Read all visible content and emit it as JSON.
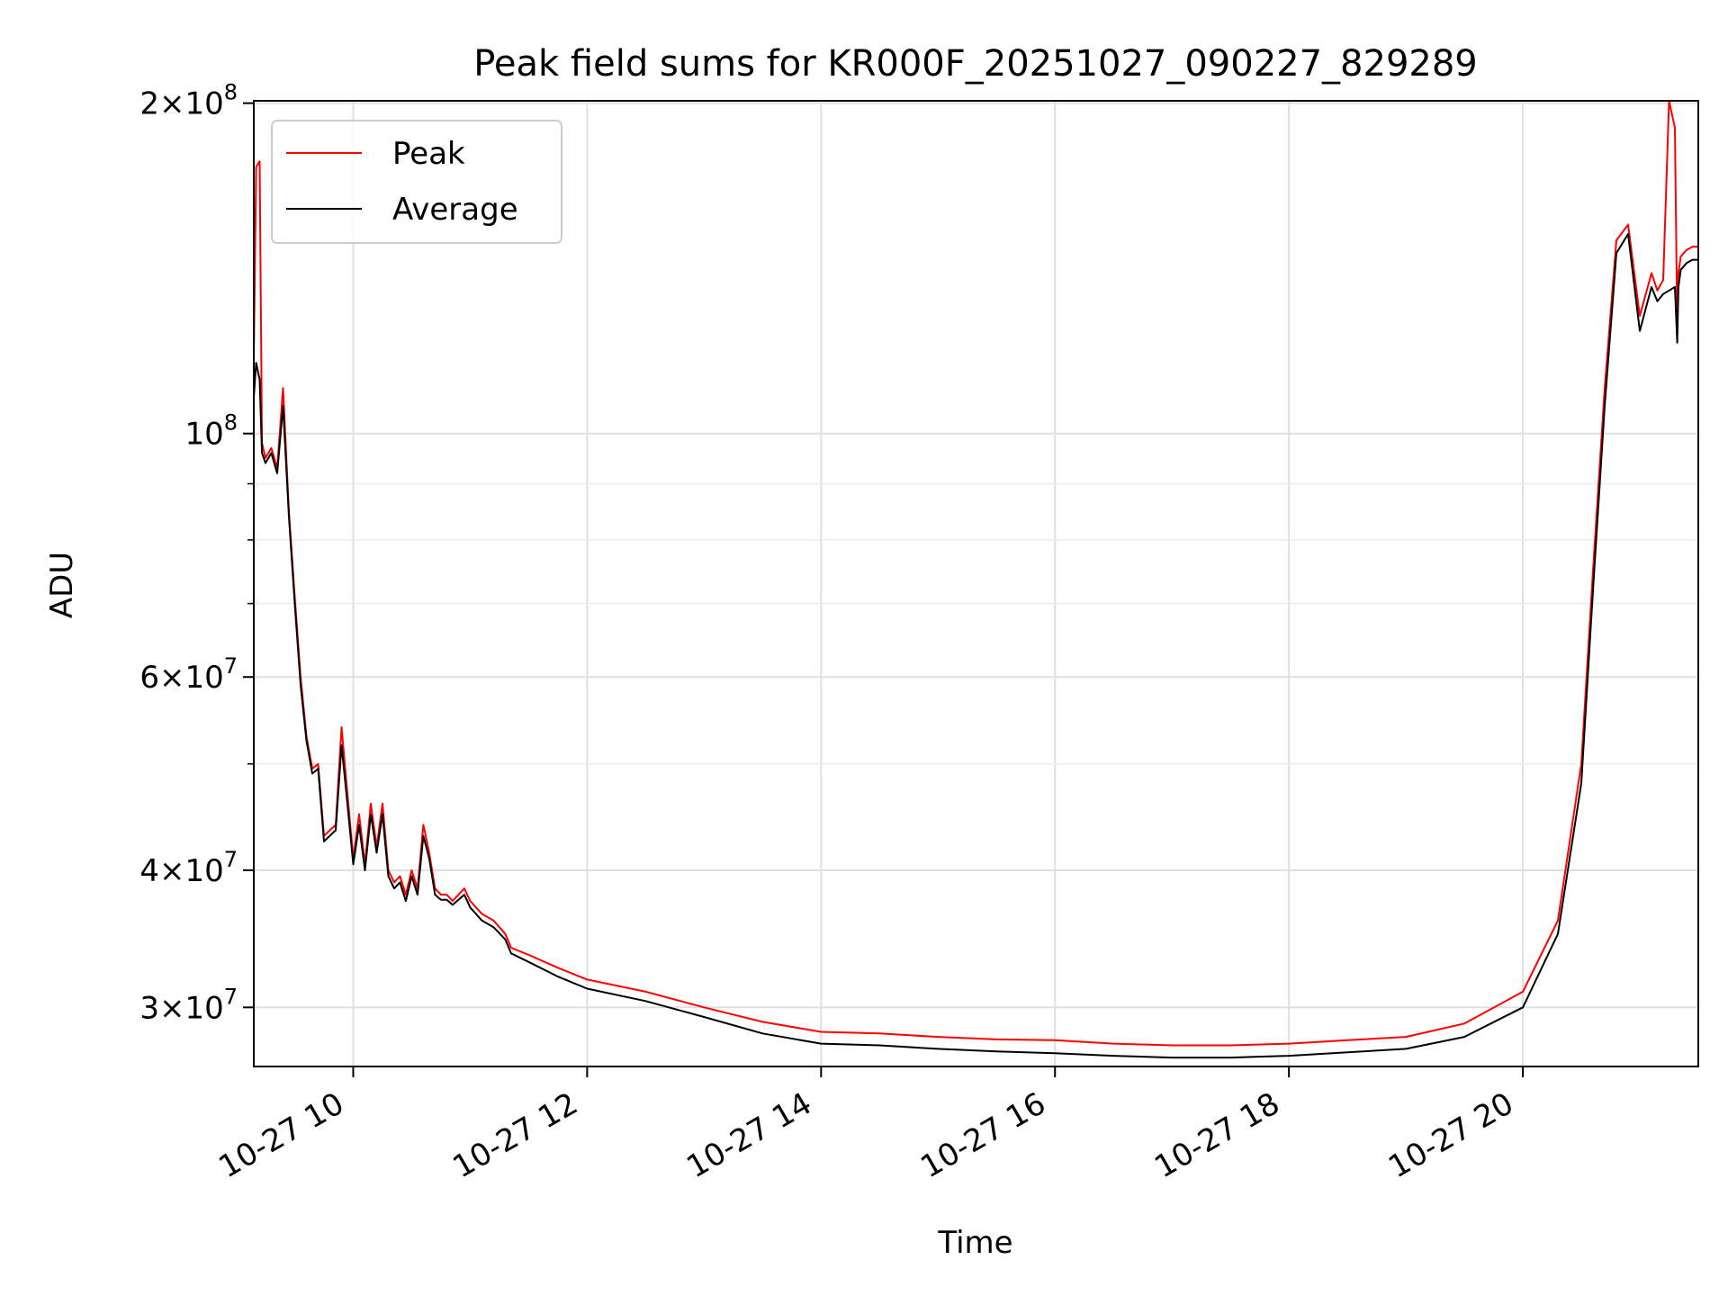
{
  "chart_data": {
    "type": "line",
    "title": "Peak field sums for KR000F_20251027_090227_829289",
    "xlabel": "Time",
    "ylabel": "ADU",
    "yscale": "log",
    "ylim": [
      26500000,
      201000000
    ],
    "xlim_hours": [
      9.15,
      21.5
    ],
    "grid": true,
    "legend_position": "upper-left",
    "x_ticks": [
      {
        "hour": 10,
        "label": "10-27 10"
      },
      {
        "hour": 12,
        "label": "10-27 12"
      },
      {
        "hour": 14,
        "label": "10-27 14"
      },
      {
        "hour": 16,
        "label": "10-27 16"
      },
      {
        "hour": 18,
        "label": "10-27 18"
      },
      {
        "hour": 20,
        "label": "10-27 20"
      }
    ],
    "y_ticks": [
      {
        "value": 30000000,
        "mant": "3",
        "exp": "7"
      },
      {
        "value": 40000000,
        "mant": "4",
        "exp": "7"
      },
      {
        "value": 60000000,
        "mant": "6",
        "exp": "7"
      },
      {
        "value": 100000000,
        "mant": "",
        "exp": "8"
      },
      {
        "value": 200000000,
        "mant": "2",
        "exp": "8"
      }
    ],
    "y_minor_ticks": [
      50000000,
      70000000,
      80000000,
      90000000
    ],
    "series": [
      {
        "name": "Peak",
        "color": "#ff0000",
        "x_hours": [
          9.15,
          9.17,
          9.2,
          9.22,
          9.25,
          9.3,
          9.35,
          9.4,
          9.45,
          9.5,
          9.55,
          9.6,
          9.65,
          9.7,
          9.75,
          9.8,
          9.85,
          9.9,
          9.95,
          10.0,
          10.05,
          10.1,
          10.15,
          10.2,
          10.25,
          10.3,
          10.35,
          10.4,
          10.45,
          10.5,
          10.55,
          10.6,
          10.65,
          10.7,
          10.75,
          10.8,
          10.85,
          10.9,
          10.95,
          11.0,
          11.1,
          11.2,
          11.3,
          11.35,
          11.5,
          11.75,
          12.0,
          12.5,
          13.0,
          13.5,
          14.0,
          14.5,
          15.0,
          15.5,
          16.0,
          16.5,
          17.0,
          17.5,
          18.0,
          18.5,
          19.0,
          19.5,
          20.0,
          20.3,
          20.5,
          20.6,
          20.7,
          20.8,
          20.9,
          21.0,
          21.1,
          21.15,
          21.2,
          21.25,
          21.3,
          21.32,
          21.33,
          21.35,
          21.4,
          21.45,
          21.5
        ],
        "values": [
          117000000,
          175000000,
          177000000,
          98000000,
          95000000,
          97000000,
          93000000,
          110000000,
          85000000,
          71000000,
          60000000,
          53000000,
          49500000,
          50000000,
          43000000,
          43500000,
          44000000,
          54000000,
          47000000,
          41000000,
          45000000,
          40500000,
          46000000,
          42000000,
          46000000,
          40000000,
          39000000,
          39500000,
          38000000,
          40000000,
          38500000,
          44000000,
          41500000,
          38500000,
          38000000,
          38000000,
          37500000,
          38000000,
          38500000,
          37500000,
          36500000,
          36000000,
          35000000,
          34000000,
          33500000,
          32600000,
          31800000,
          31000000,
          30000000,
          29100000,
          28500000,
          28400000,
          28200000,
          28050000,
          28000000,
          27800000,
          27700000,
          27700000,
          27800000,
          28000000,
          28200000,
          29000000,
          31000000,
          36000000,
          50000000,
          75000000,
          110000000,
          150000000,
          155000000,
          128000000,
          140000000,
          135000000,
          138000000,
          201000000,
          190000000,
          125000000,
          140000000,
          145000000,
          147000000,
          148000000,
          148000000
        ]
      },
      {
        "name": "Average",
        "color": "#000000",
        "x_hours": [
          9.15,
          9.17,
          9.2,
          9.22,
          9.25,
          9.3,
          9.35,
          9.4,
          9.45,
          9.5,
          9.55,
          9.6,
          9.65,
          9.7,
          9.75,
          9.8,
          9.85,
          9.9,
          9.95,
          10.0,
          10.05,
          10.1,
          10.15,
          10.2,
          10.25,
          10.3,
          10.35,
          10.4,
          10.45,
          10.5,
          10.55,
          10.6,
          10.65,
          10.7,
          10.75,
          10.8,
          10.85,
          10.9,
          10.95,
          11.0,
          11.1,
          11.2,
          11.3,
          11.35,
          11.5,
          11.75,
          12.0,
          12.5,
          13.0,
          13.5,
          14.0,
          14.5,
          15.0,
          15.5,
          16.0,
          16.5,
          17.0,
          17.5,
          18.0,
          18.5,
          19.0,
          19.5,
          20.0,
          20.3,
          20.5,
          20.6,
          20.7,
          20.8,
          20.9,
          21.0,
          21.1,
          21.15,
          21.2,
          21.25,
          21.3,
          21.32,
          21.33,
          21.35,
          21.4,
          21.45,
          21.5
        ],
        "values": [
          108000000,
          116000000,
          112000000,
          96000000,
          94000000,
          96000000,
          92000000,
          106000000,
          84000000,
          70000000,
          59000000,
          52500000,
          49000000,
          49500000,
          42500000,
          43000000,
          43500000,
          52000000,
          46000000,
          40500000,
          44000000,
          40000000,
          45000000,
          41500000,
          45000000,
          39500000,
          38500000,
          39000000,
          37500000,
          39500000,
          38000000,
          43000000,
          41000000,
          38000000,
          37600000,
          37600000,
          37200000,
          37600000,
          38000000,
          37000000,
          36000000,
          35500000,
          34600000,
          33600000,
          33000000,
          32000000,
          31200000,
          30400000,
          29400000,
          28400000,
          27800000,
          27700000,
          27500000,
          27350000,
          27250000,
          27100000,
          27000000,
          27000000,
          27100000,
          27300000,
          27500000,
          28200000,
          30000000,
          35000000,
          48000000,
          72000000,
          106000000,
          146000000,
          152000000,
          124000000,
          136000000,
          132000000,
          134000000,
          135000000,
          136000000,
          121000000,
          136000000,
          141000000,
          143000000,
          144000000,
          144000000
        ]
      }
    ]
  }
}
